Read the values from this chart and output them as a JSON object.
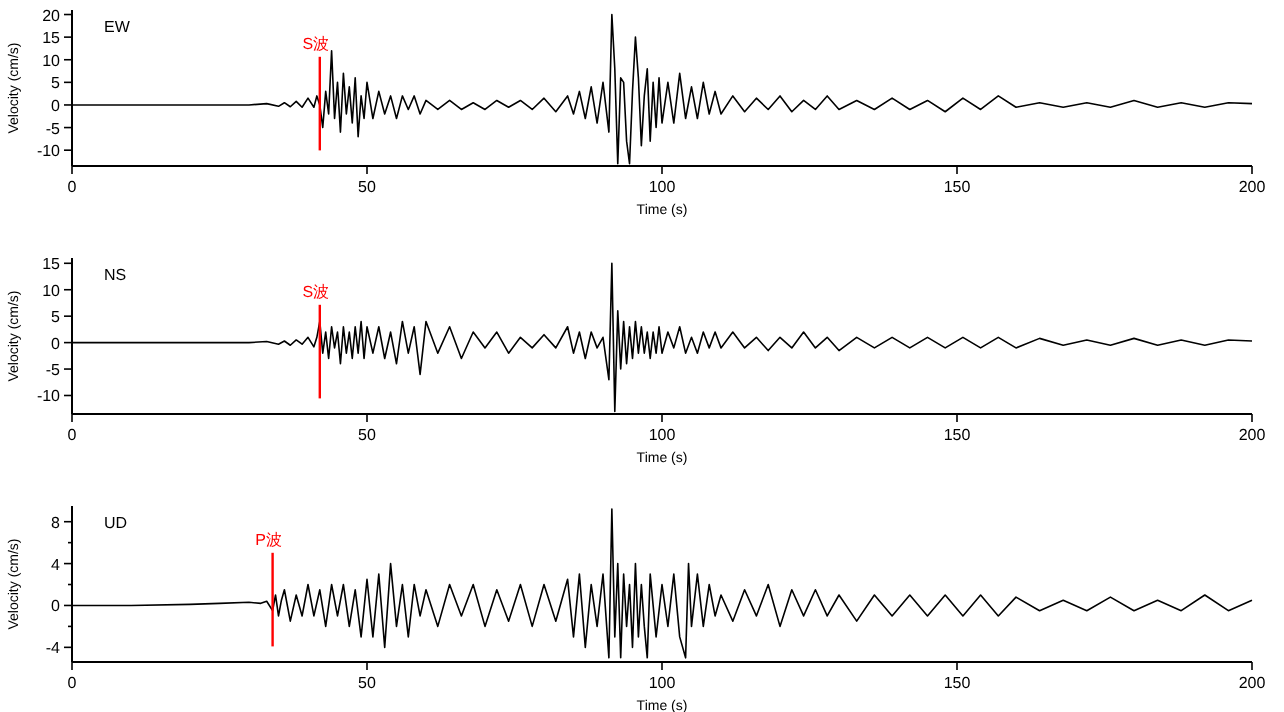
{
  "chart_data": [
    {
      "type": "line",
      "title": "EW",
      "xlabel": "Time (s)",
      "ylabel": "Velocity (cm/s)",
      "xlim": [
        0,
        200
      ],
      "xticks": [
        0,
        50,
        100,
        150,
        200
      ],
      "ylim": [
        -13.5,
        21
      ],
      "yticks": [
        -10,
        -5,
        0,
        5,
        10,
        15,
        20
      ],
      "grid": false,
      "x": [
        0,
        10,
        20,
        30,
        33,
        35,
        36,
        37,
        38,
        39,
        40,
        41,
        41.5,
        42,
        42.5,
        43,
        43.5,
        44,
        44.5,
        45,
        45.5,
        46,
        46.5,
        47,
        47.5,
        48,
        48.5,
        49,
        49.5,
        50,
        51,
        52,
        53,
        54,
        55,
        56,
        57,
        58,
        59,
        60,
        62,
        64,
        66,
        68,
        70,
        72,
        74,
        76,
        78,
        80,
        82,
        84,
        85,
        86,
        87,
        88,
        89,
        90,
        91,
        91.5,
        92,
        92.5,
        93,
        93.5,
        94,
        94.5,
        95,
        95.5,
        96,
        96.5,
        97,
        97.5,
        98,
        98.5,
        99,
        99.5,
        100,
        101,
        102,
        103,
        104,
        105,
        106,
        107,
        108,
        109,
        110,
        112,
        114,
        116,
        118,
        120,
        122,
        124,
        126,
        128,
        130,
        133,
        136,
        139,
        142,
        145,
        148,
        151,
        154,
        157,
        160,
        164,
        168,
        172,
        176,
        180,
        184,
        188,
        192,
        196,
        200
      ],
      "series": [
        {
          "color": "#000000",
          "values": [
            0,
            0,
            0,
            0,
            0.3,
            -0.3,
            0.5,
            -0.4,
            0.8,
            -0.5,
            1.5,
            -0.5,
            2,
            0,
            -5,
            3,
            -2,
            12,
            -3,
            5,
            -6,
            7,
            -2,
            4,
            -4,
            6,
            -7,
            2,
            -3,
            5,
            -3,
            3,
            -2,
            2,
            -3,
            2,
            -1,
            2,
            -2,
            1,
            -1,
            1,
            -1,
            0.5,
            -1,
            1,
            -0.5,
            1,
            -1,
            1.5,
            -1.5,
            2,
            -2,
            3,
            -3,
            4,
            -4,
            5,
            -6,
            20,
            8,
            -13,
            6,
            5,
            -8,
            -13,
            3,
            15,
            6,
            -9,
            2,
            8,
            -8,
            5,
            -5,
            6,
            -4,
            5,
            -4,
            7,
            -3,
            4,
            -3,
            5,
            -2,
            3,
            -2,
            2,
            -1.5,
            1.5,
            -1,
            2,
            -1.5,
            1,
            -1,
            2,
            -1,
            1,
            -1,
            1.5,
            -1,
            1,
            -1.5,
            1.5,
            -1,
            2,
            -0.5,
            0.5,
            -0.5,
            0.5,
            -0.5,
            1,
            -0.5,
            0.5,
            -0.5,
            0.5,
            0.3
          ]
        }
      ],
      "ref_lines": [
        {
          "axis": "x",
          "value": 42,
          "label": "S波",
          "color": "#ff0000"
        }
      ]
    },
    {
      "type": "line",
      "title": "NS",
      "xlabel": "Time (s)",
      "ylabel": "Velocity (cm/s)",
      "xlim": [
        0,
        200
      ],
      "xticks": [
        0,
        50,
        100,
        150,
        200
      ],
      "ylim": [
        -13.5,
        16
      ],
      "yticks": [
        -10,
        -5,
        0,
        5,
        10,
        15
      ],
      "grid": false,
      "x": [
        0,
        10,
        20,
        30,
        33,
        35,
        36,
        37,
        38,
        39,
        40,
        41,
        41.5,
        42,
        42.5,
        43,
        43.5,
        44,
        44.5,
        45,
        45.5,
        46,
        46.5,
        47,
        47.5,
        48,
        48.5,
        49,
        49.5,
        50,
        51,
        52,
        53,
        54,
        55,
        56,
        57,
        58,
        59,
        60,
        62,
        64,
        66,
        68,
        70,
        72,
        74,
        76,
        78,
        80,
        82,
        84,
        85,
        86,
        87,
        88,
        89,
        90,
        91,
        91.5,
        92,
        92.5,
        93,
        93.5,
        94,
        94.5,
        95,
        95.5,
        96,
        96.5,
        97,
        97.5,
        98,
        98.5,
        99,
        99.5,
        100,
        101,
        102,
        103,
        104,
        105,
        106,
        107,
        108,
        109,
        110,
        112,
        114,
        116,
        118,
        120,
        122,
        124,
        126,
        128,
        130,
        133,
        136,
        139,
        142,
        145,
        148,
        151,
        154,
        157,
        160,
        164,
        168,
        172,
        176,
        180,
        184,
        188,
        192,
        196,
        200
      ],
      "series": [
        {
          "color": "#000000",
          "values": [
            0,
            0,
            0,
            0,
            0.2,
            -0.3,
            0.3,
            -0.5,
            0.5,
            -0.3,
            1,
            -0.8,
            1,
            4,
            -2,
            2,
            -3,
            3,
            -1,
            2,
            -4,
            3,
            -2,
            2,
            -3,
            3,
            -2,
            4,
            -3,
            3,
            -2,
            3,
            -3,
            2,
            -4,
            4,
            -2,
            3,
            -6,
            4,
            -2,
            3,
            -3,
            2,
            -1,
            2,
            -2,
            1,
            -1,
            1.5,
            -1,
            3,
            -2,
            2,
            -3,
            2,
            -1,
            1,
            -7,
            15,
            -13,
            6,
            -5,
            4,
            -4,
            3,
            -3,
            4,
            -2,
            3,
            -2,
            2,
            -3,
            2,
            -2,
            3,
            -2,
            2,
            -1,
            3,
            -2,
            1,
            -2,
            2,
            -1,
            2,
            -1,
            2,
            -1,
            1,
            -1.5,
            1,
            -1,
            2,
            -1,
            1,
            -1.5,
            1,
            -1,
            1,
            -1,
            1,
            -1,
            1,
            -1,
            1,
            -1,
            0.8,
            -0.5,
            0.5,
            -0.5,
            0.8,
            -0.5,
            0.5,
            -0.5,
            0.5,
            0.3
          ]
        }
      ],
      "ref_lines": [
        {
          "axis": "x",
          "value": 42,
          "label": "S波",
          "color": "#ff0000"
        }
      ]
    },
    {
      "type": "line",
      "title": "UD",
      "xlabel": "Time (s)",
      "ylabel": "Velocity (cm/s)",
      "xlim": [
        0,
        200
      ],
      "xticks": [
        0,
        50,
        100,
        150,
        200
      ],
      "ylim": [
        -5.4,
        9.5
      ],
      "yticks": [
        -4,
        {
          "value": -2,
          "label": null
        },
        0,
        {
          "value": 2,
          "label": null
        },
        4,
        {
          "value": 6,
          "label": null
        },
        8
      ],
      "grid": false,
      "x": [
        0,
        10,
        20,
        25,
        30,
        32,
        33,
        34,
        34.5,
        35,
        35.5,
        36,
        37,
        38,
        39,
        40,
        41,
        42,
        43,
        44,
        45,
        46,
        47,
        48,
        49,
        50,
        51,
        52,
        53,
        54,
        55,
        56,
        57,
        58,
        59,
        60,
        62,
        64,
        66,
        68,
        70,
        72,
        74,
        76,
        78,
        80,
        82,
        84,
        85,
        86,
        87,
        88,
        89,
        90,
        91,
        91.5,
        92,
        92.5,
        93,
        93.5,
        94,
        94.5,
        95,
        95.5,
        96,
        96.5,
        97,
        97.5,
        98,
        99,
        100,
        101,
        102,
        103,
        104,
        104.5,
        105,
        106,
        107,
        108,
        109,
        110,
        112,
        114,
        116,
        118,
        120,
        122,
        124,
        126,
        128,
        130,
        133,
        136,
        139,
        142,
        145,
        148,
        151,
        154,
        157,
        160,
        164,
        168,
        172,
        176,
        180,
        184,
        188,
        192,
        196,
        200
      ],
      "series": [
        {
          "color": "#000000",
          "values": [
            0,
            0,
            0.1,
            0.2,
            0.3,
            0.2,
            0.4,
            -0.5,
            1,
            -1,
            0.5,
            1.5,
            -1.5,
            1,
            -1,
            2,
            -1,
            1.5,
            -2,
            2,
            -1,
            2,
            -2,
            1.5,
            -3,
            2.5,
            -3,
            3,
            -4,
            4,
            -2,
            2,
            -3,
            2,
            -1,
            1.5,
            -2,
            2,
            -1,
            2,
            -2,
            1.5,
            -1.5,
            2,
            -2,
            2,
            -1.5,
            2.5,
            -3,
            3,
            -4,
            2,
            -2,
            3,
            -5,
            9.2,
            -3,
            4,
            -5,
            3,
            -2,
            2,
            -4,
            4,
            -3,
            2,
            -2,
            -5,
            3,
            -3,
            2,
            -2,
            3,
            -3,
            -5,
            4,
            -2,
            3,
            -2,
            2,
            -1,
            1,
            -1.5,
            1.5,
            -1,
            2,
            -2,
            1.5,
            -1,
            1.5,
            -1,
            1,
            -1.5,
            1,
            -1,
            1,
            -1,
            1,
            -1,
            1,
            -1,
            0.8,
            -0.5,
            0.5,
            -0.5,
            0.8,
            -0.5,
            0.5,
            -0.5,
            1,
            -0.5,
            0.5
          ]
        }
      ],
      "ref_lines": [
        {
          "axis": "x",
          "value": 34,
          "label": "P波",
          "color": "#ff0000"
        }
      ]
    }
  ]
}
